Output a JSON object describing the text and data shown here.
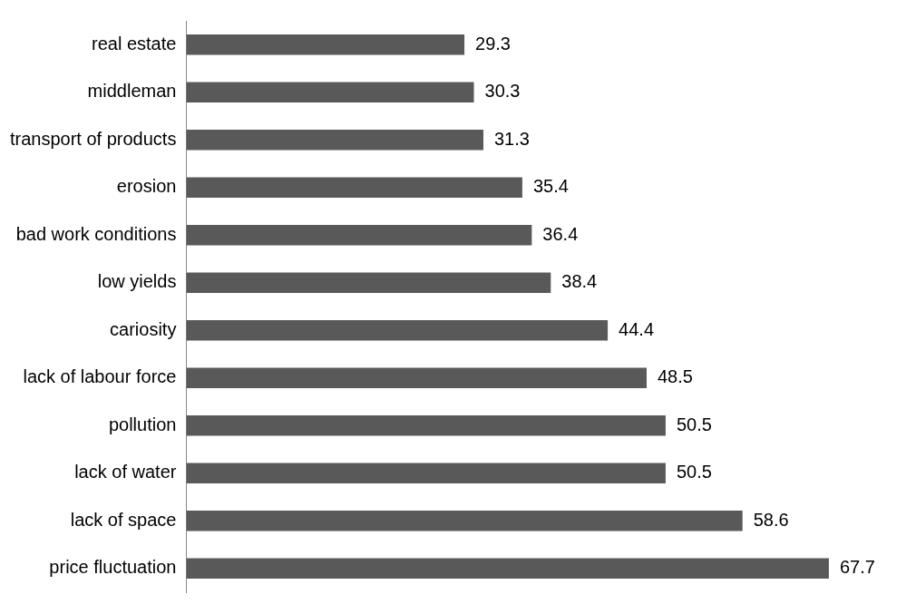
{
  "chart_data": {
    "type": "bar",
    "orientation": "horizontal",
    "categories": [
      "real estate",
      "middleman",
      "transport of products",
      "erosion",
      "bad work conditions",
      "low yields",
      "cariosity",
      "lack of labour force",
      "pollution",
      "lack of water",
      "lack of space",
      "price fluctuation"
    ],
    "values": [
      29.3,
      30.3,
      31.3,
      35.4,
      36.4,
      38.4,
      44.4,
      48.5,
      50.5,
      50.5,
      58.6,
      67.7
    ],
    "color": "#595959",
    "data_labels": true
  }
}
